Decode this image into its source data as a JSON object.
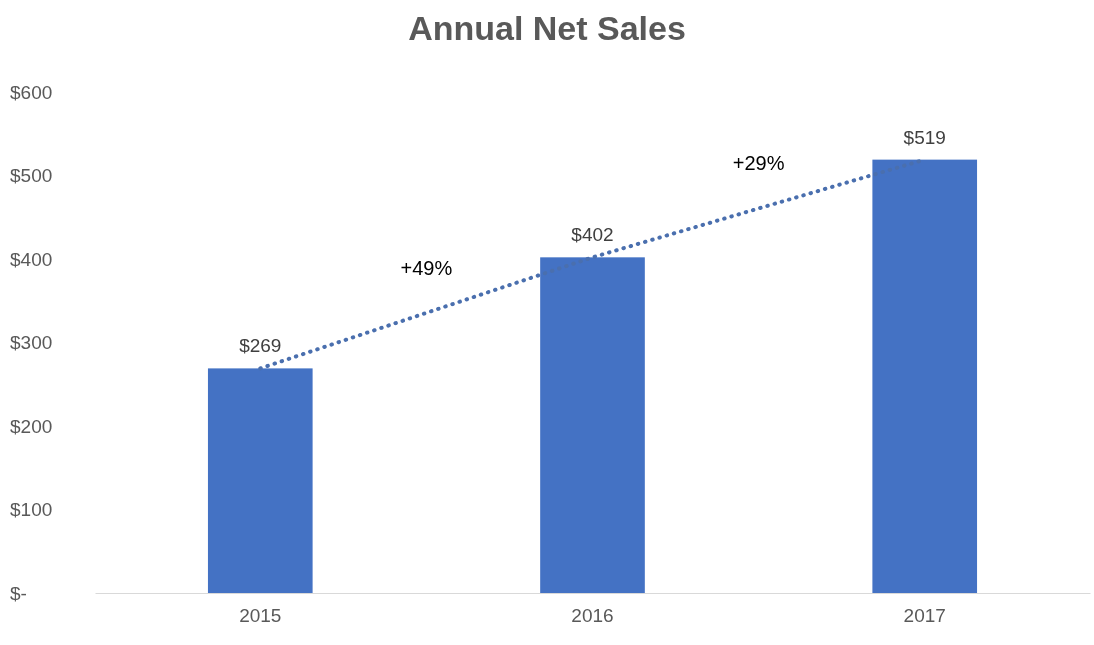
{
  "chart_data": {
    "type": "bar",
    "title": "Annual Net Sales",
    "categories": [
      "2015",
      "2016",
      "2017"
    ],
    "series": [
      {
        "color": "#4472c4",
        "values": [
          269,
          402,
          519
        ],
        "value_labels": [
          "$269",
          "$402",
          "$519"
        ]
      },
      {
        "type": "line",
        "color": "#4a6fae",
        "values": [
          269,
          402,
          519
        ],
        "line_style": "dotted",
        "marker": "none"
      }
    ],
    "ylim": [
      0,
      600
    ],
    "yticks": [
      {
        "value": 0,
        "label": "$-"
      },
      {
        "value": 100,
        "label": "$100"
      },
      {
        "value": 200,
        "label": "$200"
      },
      {
        "value": 300,
        "label": "$300"
      },
      {
        "value": 400,
        "label": "$400"
      },
      {
        "value": 500,
        "label": "$500"
      },
      {
        "value": 600,
        "label": "$600"
      }
    ],
    "grid": false,
    "annotations": [
      "+49%",
      "+29%"
    ]
  }
}
